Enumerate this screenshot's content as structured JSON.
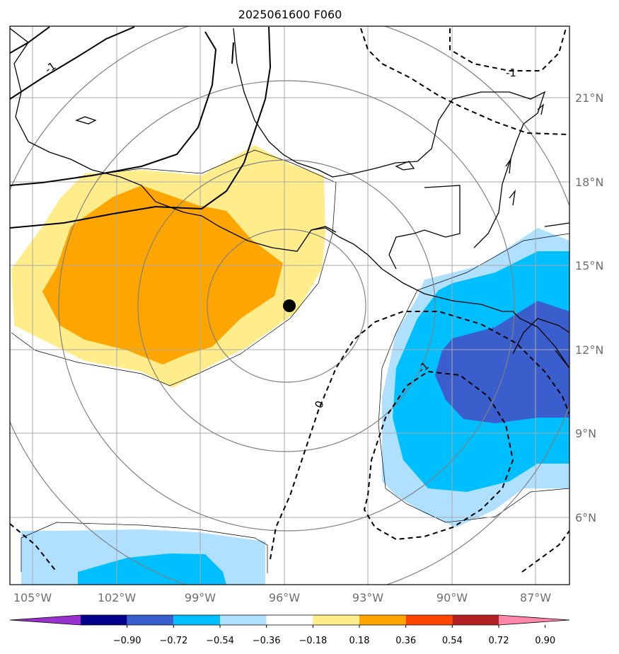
{
  "title": "2025061600 F060",
  "lon_labels": [
    "105°W",
    "102°W",
    "99°W",
    "96°W",
    "93°W",
    "90°W",
    "87°W"
  ],
  "lat_labels": [
    "21°N",
    "18°N",
    "15°N",
    "12°N",
    "9°N",
    "6°N"
  ],
  "colorbar": {
    "ticks": [
      "−0.90",
      "−0.72",
      "−0.54",
      "−0.36",
      "−0.18",
      "0.18",
      "0.36",
      "0.54",
      "0.72",
      "0.90"
    ],
    "colors": [
      "#9932cc",
      "#00008b",
      "#3a5fcd",
      "#00bfff",
      "#b0e0ff",
      "#ffffff",
      "#ffec8b",
      "#ffa500",
      "#ff4500",
      "#b22222",
      "#ff88aa"
    ]
  },
  "contour_labels": {
    "neg1_nw": "-1",
    "neg1_ne": "-1",
    "neg1_se": "-1",
    "zero": "0"
  },
  "center_marker": {
    "name": "storm-center",
    "lon": -95.9,
    "lat": 13.5
  }
}
